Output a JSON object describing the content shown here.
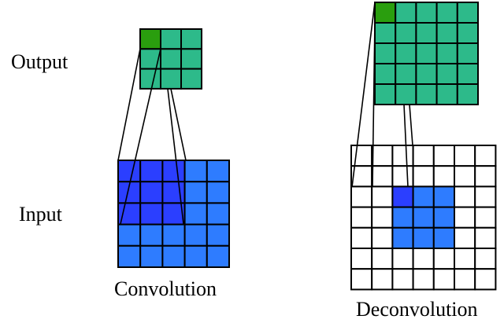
{
  "labels": {
    "output": "Output",
    "input": "Input",
    "convolution": "Convolution",
    "deconvolution": "Deconvolution"
  },
  "colors": {
    "output_cell": "#2dba8a",
    "output_highlight": "#2a9e0e",
    "input_cell": "#2e7cff",
    "input_highlight": "#2b3fff",
    "empty_cell": "#ffffff",
    "grid_line": "#000000"
  },
  "convolution": {
    "output_grid": {
      "rows": 3,
      "cols": 3,
      "highlight_cell": [
        0,
        0
      ]
    },
    "input_grid": {
      "rows": 5,
      "cols": 5,
      "highlight_region": {
        "row": 0,
        "col": 0,
        "rows": 3,
        "cols": 3
      }
    }
  },
  "deconvolution": {
    "output_grid": {
      "rows": 5,
      "cols": 5,
      "highlight_cell": [
        0,
        0
      ]
    },
    "input_grid": {
      "rows": 7,
      "cols": 7,
      "filled_region": {
        "row": 2,
        "col": 2,
        "rows": 3,
        "cols": 3
      },
      "highlight_cell": [
        2,
        2
      ]
    }
  }
}
